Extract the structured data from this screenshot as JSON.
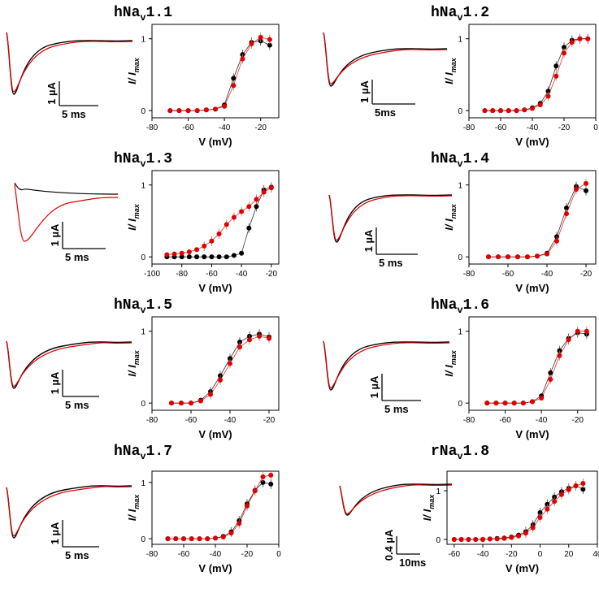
{
  "panels": [
    {
      "title": "hNa",
      "title_sub": "v",
      "title_rest": "1.1",
      "trace_scale": {
        "amplitude": "1 µA",
        "time": "5 ms"
      },
      "chart_data": {
        "type": "scatter",
        "xlabel": "V (mV)",
        "ylabel": "I/ I",
        "ylabel_sub": "max",
        "xlim": [
          -80,
          -10
        ],
        "ylim": [
          -0.1,
          1.2
        ],
        "xticks": [
          -80,
          -60,
          -40,
          -20
        ],
        "yticks": [
          0,
          1
        ],
        "series": [
          {
            "color": "#000000",
            "x": [
              -70,
              -65,
              -60,
              -55,
              -50,
              -45,
              -40,
              -35,
              -30,
              -25,
              -20,
              -15
            ],
            "y": [
              0.0,
              0.0,
              0.0,
              0.0,
              0.01,
              0.02,
              0.08,
              0.45,
              0.78,
              0.95,
              0.97,
              0.91
            ]
          },
          {
            "color": "#e00000",
            "x": [
              -70,
              -65,
              -60,
              -55,
              -50,
              -45,
              -40,
              -35,
              -30,
              -25,
              -20,
              -15
            ],
            "y": [
              0.0,
              0.0,
              0.0,
              0.0,
              0.01,
              0.02,
              0.06,
              0.35,
              0.72,
              0.93,
              1.02,
              0.99
            ]
          }
        ]
      }
    },
    {
      "title": "hNa",
      "title_sub": "v",
      "title_rest": "1.2",
      "trace_scale": {
        "amplitude": "1 µA",
        "time": "5ms"
      },
      "chart_data": {
        "type": "scatter",
        "xlabel": "V (mV)",
        "ylabel": "I/ I",
        "ylabel_sub": "max",
        "xlim": [
          -80,
          0
        ],
        "ylim": [
          -0.1,
          1.2
        ],
        "xticks": [
          -80,
          -60,
          -40,
          -20,
          0
        ],
        "yticks": [
          0,
          1
        ],
        "series": [
          {
            "color": "#000000",
            "x": [
              -70,
              -65,
              -60,
              -55,
              -50,
              -45,
              -40,
              -35,
              -30,
              -25,
              -20,
              -15,
              -10,
              -5
            ],
            "y": [
              0.0,
              0.0,
              0.0,
              0.0,
              0.0,
              0.01,
              0.04,
              0.1,
              0.27,
              0.62,
              0.88,
              0.98,
              1.0,
              1.0
            ]
          },
          {
            "color": "#e00000",
            "x": [
              -70,
              -65,
              -60,
              -55,
              -50,
              -45,
              -40,
              -35,
              -30,
              -25,
              -20,
              -15,
              -10,
              -5
            ],
            "y": [
              0.0,
              0.0,
              0.0,
              0.0,
              0.0,
              0.01,
              0.03,
              0.08,
              0.2,
              0.48,
              0.8,
              0.95,
              1.0,
              1.0
            ]
          }
        ]
      }
    },
    {
      "title": "hNa",
      "title_sub": "v",
      "title_rest": "1.3",
      "trace_scale": {
        "amplitude": "1 µA",
        "time": "5 ms"
      },
      "chart_data": {
        "type": "scatter",
        "xlabel": "V (mV)",
        "ylabel": "I/ I",
        "ylabel_sub": "max",
        "xlim": [
          -100,
          -15
        ],
        "ylim": [
          -0.1,
          1.2
        ],
        "xticks": [
          -100,
          -80,
          -60,
          -40,
          -20
        ],
        "yticks": [
          0,
          1
        ],
        "series": [
          {
            "color": "#000000",
            "x": [
              -90,
              -85,
              -80,
              -75,
              -70,
              -65,
              -60,
              -55,
              -50,
              -45,
              -40,
              -35,
              -30,
              -25,
              -20
            ],
            "y": [
              0.0,
              0.0,
              0.0,
              0.0,
              0.0,
              0.0,
              0.0,
              0.0,
              0.0,
              0.02,
              0.05,
              0.4,
              0.7,
              0.93,
              0.97
            ]
          },
          {
            "color": "#e00000",
            "x": [
              -90,
              -85,
              -80,
              -75,
              -70,
              -65,
              -60,
              -55,
              -50,
              -45,
              -40,
              -35,
              -30,
              -25,
              -20
            ],
            "y": [
              0.03,
              0.04,
              0.05,
              0.07,
              0.1,
              0.15,
              0.22,
              0.32,
              0.45,
              0.55,
              0.63,
              0.7,
              0.8,
              0.9,
              0.96
            ]
          }
        ]
      }
    },
    {
      "title": "hNa",
      "title_sub": "v",
      "title_rest": "1.4",
      "trace_scale": {
        "amplitude": "1 µA",
        "time": "5 ms"
      },
      "chart_data": {
        "type": "scatter",
        "xlabel": "V (mV)",
        "ylabel": "I/ I",
        "ylabel_sub": "max",
        "xlim": [
          -80,
          -15
        ],
        "ylim": [
          -0.1,
          1.2
        ],
        "xticks": [
          -80,
          -60,
          -40,
          -20
        ],
        "yticks": [
          0,
          1
        ],
        "series": [
          {
            "color": "#000000",
            "x": [
              -70,
              -65,
              -60,
              -55,
              -50,
              -45,
              -40,
              -35,
              -30,
              -25,
              -20
            ],
            "y": [
              0.0,
              0.0,
              0.0,
              0.0,
              0.0,
              0.01,
              0.05,
              0.28,
              0.68,
              0.98,
              0.92
            ]
          },
          {
            "color": "#e00000",
            "x": [
              -70,
              -65,
              -60,
              -55,
              -50,
              -45,
              -40,
              -35,
              -30,
              -25,
              -20
            ],
            "y": [
              0.0,
              0.0,
              0.0,
              0.0,
              0.0,
              0.01,
              0.04,
              0.22,
              0.6,
              0.94,
              1.02
            ]
          }
        ]
      }
    },
    {
      "title": "hNa",
      "title_sub": "v",
      "title_rest": "1.5",
      "trace_scale": {
        "amplitude": "1 µA",
        "time": "5 ms"
      },
      "chart_data": {
        "type": "scatter",
        "xlabel": "V (mV)",
        "ylabel": "I/ I",
        "ylabel_sub": "max",
        "xlim": [
          -80,
          -15
        ],
        "ylim": [
          -0.1,
          1.2
        ],
        "xticks": [
          -80,
          -60,
          -40,
          -20
        ],
        "yticks": [
          0,
          1
        ],
        "series": [
          {
            "color": "#000000",
            "x": [
              -70,
              -65,
              -60,
              -55,
              -50,
              -45,
              -40,
              -35,
              -30,
              -25,
              -20
            ],
            "y": [
              0.0,
              0.0,
              0.0,
              0.04,
              0.16,
              0.38,
              0.62,
              0.85,
              0.93,
              0.96,
              0.92
            ]
          },
          {
            "color": "#e00000",
            "x": [
              -70,
              -65,
              -60,
              -55,
              -50,
              -45,
              -40,
              -35,
              -30,
              -25,
              -20
            ],
            "y": [
              0.0,
              0.0,
              0.0,
              0.03,
              0.12,
              0.32,
              0.55,
              0.78,
              0.88,
              0.93,
              0.9
            ]
          }
        ]
      }
    },
    {
      "title": "hNa",
      "title_sub": "v",
      "title_rest": "1.6",
      "trace_scale": {
        "amplitude": "1 µA",
        "time": "5 ms"
      },
      "chart_data": {
        "type": "scatter",
        "xlabel": "V (mV)",
        "ylabel": "I/ I",
        "ylabel_sub": "max",
        "xlim": [
          -80,
          -10
        ],
        "ylim": [
          -0.1,
          1.2
        ],
        "xticks": [
          -80,
          -60,
          -40,
          -20
        ],
        "yticks": [
          0,
          1
        ],
        "series": [
          {
            "color": "#000000",
            "x": [
              -70,
              -65,
              -60,
              -55,
              -50,
              -45,
              -40,
              -35,
              -30,
              -25,
              -20,
              -15
            ],
            "y": [
              0.0,
              0.0,
              0.0,
              0.0,
              0.0,
              0.02,
              0.1,
              0.42,
              0.73,
              0.9,
              0.98,
              0.96
            ]
          },
          {
            "color": "#e00000",
            "x": [
              -70,
              -65,
              -60,
              -55,
              -50,
              -45,
              -40,
              -35,
              -30,
              -25,
              -20,
              -15
            ],
            "y": [
              0.0,
              0.0,
              0.0,
              0.0,
              0.0,
              0.02,
              0.07,
              0.33,
              0.66,
              0.88,
              1.0,
              1.0
            ]
          }
        ]
      }
    },
    {
      "title": "hNa",
      "title_sub": "v",
      "title_rest": "1.7",
      "trace_scale": {
        "amplitude": "1 µA",
        "time": "5 ms"
      },
      "chart_data": {
        "type": "scatter",
        "xlabel": "V (mV)",
        "ylabel": "I/ I",
        "ylabel_sub": "max",
        "xlim": [
          -80,
          0
        ],
        "ylim": [
          -0.1,
          1.2
        ],
        "xticks": [
          -80,
          -60,
          -40,
          -20,
          0
        ],
        "yticks": [
          0,
          1
        ],
        "series": [
          {
            "color": "#000000",
            "x": [
              -70,
              -65,
              -60,
              -55,
              -50,
              -45,
              -40,
              -35,
              -30,
              -25,
              -20,
              -15,
              -10,
              -5
            ],
            "y": [
              0.0,
              0.0,
              0.0,
              0.0,
              0.0,
              0.0,
              0.01,
              0.04,
              0.12,
              0.32,
              0.62,
              0.86,
              1.0,
              0.97
            ]
          },
          {
            "color": "#e00000",
            "x": [
              -70,
              -65,
              -60,
              -55,
              -50,
              -45,
              -40,
              -35,
              -30,
              -25,
              -20,
              -15,
              -10,
              -5
            ],
            "y": [
              0.0,
              0.0,
              0.0,
              0.0,
              0.0,
              0.0,
              0.01,
              0.03,
              0.1,
              0.27,
              0.58,
              0.85,
              1.1,
              1.13
            ]
          }
        ]
      }
    },
    {
      "title": "rNa",
      "title_sub": "v",
      "title_rest": "1.8",
      "trace_scale": {
        "amplitude": "0.4 µA",
        "time": "10ms"
      },
      "chart_data": {
        "type": "scatter",
        "xlabel": "V (mV)",
        "ylabel": "I/ I",
        "ylabel_sub": "max",
        "xlim": [
          -65,
          40
        ],
        "ylim": [
          -0.1,
          1.4
        ],
        "xticks": [
          -60,
          -40,
          -20,
          0,
          20,
          40
        ],
        "yticks": [
          0,
          1
        ],
        "series": [
          {
            "color": "#000000",
            "x": [
              -60,
              -55,
              -50,
              -45,
              -40,
              -35,
              -30,
              -25,
              -20,
              -15,
              -10,
              -5,
              0,
              5,
              10,
              15,
              20,
              25,
              30
            ],
            "y": [
              0.0,
              0.0,
              0.0,
              0.0,
              0.0,
              0.01,
              0.02,
              0.03,
              0.05,
              0.09,
              0.16,
              0.3,
              0.55,
              0.72,
              0.87,
              0.98,
              1.05,
              1.1,
              1.03
            ]
          },
          {
            "color": "#e00000",
            "x": [
              -60,
              -55,
              -50,
              -45,
              -40,
              -35,
              -30,
              -25,
              -20,
              -15,
              -10,
              -5,
              0,
              5,
              10,
              15,
              20,
              25,
              30
            ],
            "y": [
              0.0,
              0.0,
              0.0,
              0.0,
              0.0,
              0.01,
              0.01,
              0.02,
              0.04,
              0.07,
              0.13,
              0.24,
              0.45,
              0.62,
              0.78,
              0.92,
              1.02,
              1.1,
              1.15
            ]
          }
        ]
      }
    }
  ],
  "colors": {
    "control": "#000000",
    "treated": "#e00000",
    "axis": "#000000",
    "error": "#e06060"
  }
}
